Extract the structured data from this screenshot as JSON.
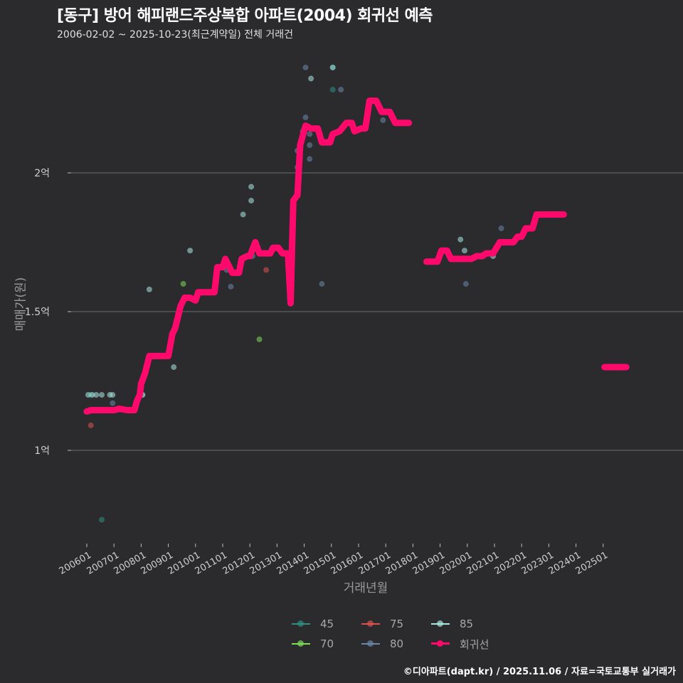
{
  "header": {
    "title": "[동구] 방어 해피랜드주상복합 아파트(2004) 회귀선 예측",
    "subtitle": "2006-02-02 ~ 2025-10-23(최근계약일) 전체 거래건"
  },
  "footer": {
    "credit": "©디아파트(dapt.kr) / 2025.11.06 / 자료=국토교통부 실거래가"
  },
  "colors": {
    "background": "#2b2a2d",
    "grid": "#6e6e6e",
    "regression": "#ff0a6c",
    "s45": "#2f8f83",
    "s70": "#7ddc5a",
    "s75": "#d9534f",
    "s80": "#6b86a8",
    "s85": "#a8e6e0"
  },
  "chart_data": {
    "type": "scatter",
    "title": "[동구] 방어 해피랜드주상복합 아파트(2004) 회귀선 예측",
    "subtitle": "2006-02-02 ~ 2025-10-23(최근계약일) 전체 거래건",
    "xlabel": "거래년월",
    "ylabel": "매매가(원)",
    "x_ticks": [
      "200601",
      "200701",
      "200801",
      "200901",
      "201001",
      "201101",
      "201201",
      "201301",
      "201401",
      "201501",
      "201601",
      "201701",
      "201801",
      "201901",
      "202001",
      "202101",
      "202201",
      "202301",
      "202401",
      "202501"
    ],
    "y_ticks": [
      {
        "value": 1.0,
        "label": "1억"
      },
      {
        "value": 1.5,
        "label": "1.5억"
      },
      {
        "value": 2.0,
        "label": "2억"
      }
    ],
    "ylim": [
      0.68,
      2.42
    ],
    "xlim": [
      2005.55,
      2027.2
    ],
    "grid": true,
    "legend_position": "bottom",
    "legend": [
      "45",
      "75",
      "85",
      "70",
      "80",
      "회귀선"
    ],
    "series": [
      {
        "name": "45",
        "points": [
          [
            2006.15,
            1.2
          ],
          [
            2006.55,
            0.75
          ],
          [
            2015.05,
            2.38
          ],
          [
            2015.05,
            2.3
          ]
        ]
      },
      {
        "name": "70",
        "points": [
          [
            2009.55,
            1.6
          ],
          [
            2012.35,
            1.4
          ]
        ]
      },
      {
        "name": "75",
        "points": [
          [
            2006.15,
            1.09
          ],
          [
            2012.6,
            1.65
          ]
        ]
      },
      {
        "name": "80",
        "points": [
          [
            2006.95,
            1.17
          ],
          [
            2008.05,
            1.2
          ],
          [
            2011.15,
            1.65
          ],
          [
            2011.3,
            1.59
          ],
          [
            2012.1,
            1.7
          ],
          [
            2013.75,
            2.08
          ],
          [
            2013.75,
            2.02
          ],
          [
            2014.05,
            2.2
          ],
          [
            2014.2,
            2.14
          ],
          [
            2014.2,
            2.05
          ],
          [
            2014.2,
            2.1
          ],
          [
            2014.05,
            2.38
          ],
          [
            2015.35,
            2.3
          ],
          [
            2016.9,
            2.19
          ],
          [
            2014.65,
            1.6
          ],
          [
            2019.95,
            1.6
          ],
          [
            2021.25,
            1.8
          ],
          [
            2013.95,
            2.15
          ]
        ]
      },
      {
        "name": "85",
        "points": [
          [
            2006.05,
            1.2
          ],
          [
            2006.2,
            1.2
          ],
          [
            2006.35,
            1.2
          ],
          [
            2006.55,
            1.2
          ],
          [
            2006.85,
            1.2
          ],
          [
            2006.95,
            1.2
          ],
          [
            2008.05,
            1.2
          ],
          [
            2007.95,
            1.2
          ],
          [
            2008.3,
            1.58
          ],
          [
            2009.2,
            1.3
          ],
          [
            2009.8,
            1.72
          ],
          [
            2011.75,
            1.85
          ],
          [
            2012.05,
            1.9
          ],
          [
            2012.05,
            1.95
          ],
          [
            2014.25,
            2.34
          ],
          [
            2015.05,
            2.38
          ],
          [
            2019.75,
            1.76
          ],
          [
            2019.9,
            1.72
          ],
          [
            2020.95,
            1.7
          ]
        ]
      },
      {
        "name": "회귀선",
        "segments": [
          [
            [
              2006.0,
              1.14
            ],
            [
              2006.15,
              1.145
            ],
            [
              2006.6,
              1.145
            ],
            [
              2007.0,
              1.145
            ],
            [
              2007.2,
              1.15
            ],
            [
              2007.5,
              1.145
            ],
            [
              2007.75,
              1.145
            ],
            [
              2007.85,
              1.18
            ],
            [
              2007.95,
              1.2
            ],
            [
              2008.0,
              1.24
            ],
            [
              2008.15,
              1.28
            ],
            [
              2008.3,
              1.34
            ],
            [
              2008.6,
              1.34
            ],
            [
              2008.85,
              1.34
            ],
            [
              2009.0,
              1.34
            ],
            [
              2009.15,
              1.42
            ],
            [
              2009.25,
              1.44
            ],
            [
              2009.35,
              1.48
            ],
            [
              2009.45,
              1.52
            ],
            [
              2009.6,
              1.55
            ],
            [
              2009.8,
              1.55
            ],
            [
              2010.0,
              1.54
            ],
            [
              2010.1,
              1.57
            ],
            [
              2010.35,
              1.57
            ],
            [
              2010.7,
              1.57
            ],
            [
              2010.8,
              1.66
            ],
            [
              2011.0,
              1.66
            ],
            [
              2011.1,
              1.69
            ],
            [
              2011.35,
              1.64
            ],
            [
              2011.6,
              1.64
            ],
            [
              2011.7,
              1.69
            ],
            [
              2011.9,
              1.7
            ],
            [
              2012.0,
              1.7
            ],
            [
              2012.2,
              1.75
            ],
            [
              2012.35,
              1.71
            ],
            [
              2012.6,
              1.71
            ],
            [
              2012.75,
              1.71
            ],
            [
              2012.85,
              1.73
            ],
            [
              2013.05,
              1.73
            ],
            [
              2013.2,
              1.71
            ],
            [
              2013.4,
              1.71
            ],
            [
              2013.5,
              1.53
            ],
            [
              2013.55,
              1.72
            ],
            [
              2013.6,
              1.9
            ],
            [
              2013.75,
              1.92
            ],
            [
              2013.85,
              2.1
            ],
            [
              2014.05,
              2.17
            ],
            [
              2014.25,
              2.16
            ],
            [
              2014.5,
              2.16
            ],
            [
              2014.65,
              2.11
            ],
            [
              2014.95,
              2.11
            ],
            [
              2015.05,
              2.14
            ],
            [
              2015.3,
              2.15
            ],
            [
              2015.55,
              2.18
            ],
            [
              2015.75,
              2.18
            ],
            [
              2015.85,
              2.15
            ],
            [
              2016.1,
              2.16
            ],
            [
              2016.25,
              2.16
            ],
            [
              2016.4,
              2.26
            ],
            [
              2016.65,
              2.26
            ],
            [
              2016.85,
              2.22
            ],
            [
              2017.15,
              2.22
            ],
            [
              2017.35,
              2.18
            ],
            [
              2017.85,
              2.18
            ]
          ],
          [
            [
              2018.5,
              1.68
            ],
            [
              2018.9,
              1.68
            ],
            [
              2019.05,
              1.72
            ],
            [
              2019.25,
              1.72
            ],
            [
              2019.4,
              1.69
            ],
            [
              2019.8,
              1.69
            ],
            [
              2020.15,
              1.69
            ],
            [
              2020.35,
              1.7
            ],
            [
              2020.55,
              1.7
            ],
            [
              2020.7,
              1.71
            ],
            [
              2020.95,
              1.71
            ],
            [
              2021.2,
              1.75
            ],
            [
              2021.45,
              1.75
            ],
            [
              2021.7,
              1.75
            ],
            [
              2021.85,
              1.77
            ],
            [
              2022.0,
              1.77
            ],
            [
              2022.15,
              1.8
            ],
            [
              2022.4,
              1.8
            ],
            [
              2022.55,
              1.85
            ],
            [
              2022.8,
              1.85
            ],
            [
              2023.3,
              1.85
            ],
            [
              2023.55,
              1.85
            ]
          ],
          [
            [
              2025.05,
              1.3
            ],
            [
              2025.25,
              1.3
            ],
            [
              2025.6,
              1.3
            ],
            [
              2025.85,
              1.3
            ]
          ]
        ]
      }
    ]
  },
  "axis": {
    "x_title": "거래년월",
    "y_title": "매매가(원)"
  },
  "legend_items": [
    {
      "key": "45",
      "label": "45",
      "color_key": "s45"
    },
    {
      "key": "75",
      "label": "75",
      "color_key": "s75"
    },
    {
      "key": "85",
      "label": "85",
      "color_key": "s85"
    },
    {
      "key": "70",
      "label": "70",
      "color_key": "s70"
    },
    {
      "key": "80",
      "label": "80",
      "color_key": "s80"
    },
    {
      "key": "reg",
      "label": "회귀선",
      "color_key": "regression"
    }
  ]
}
